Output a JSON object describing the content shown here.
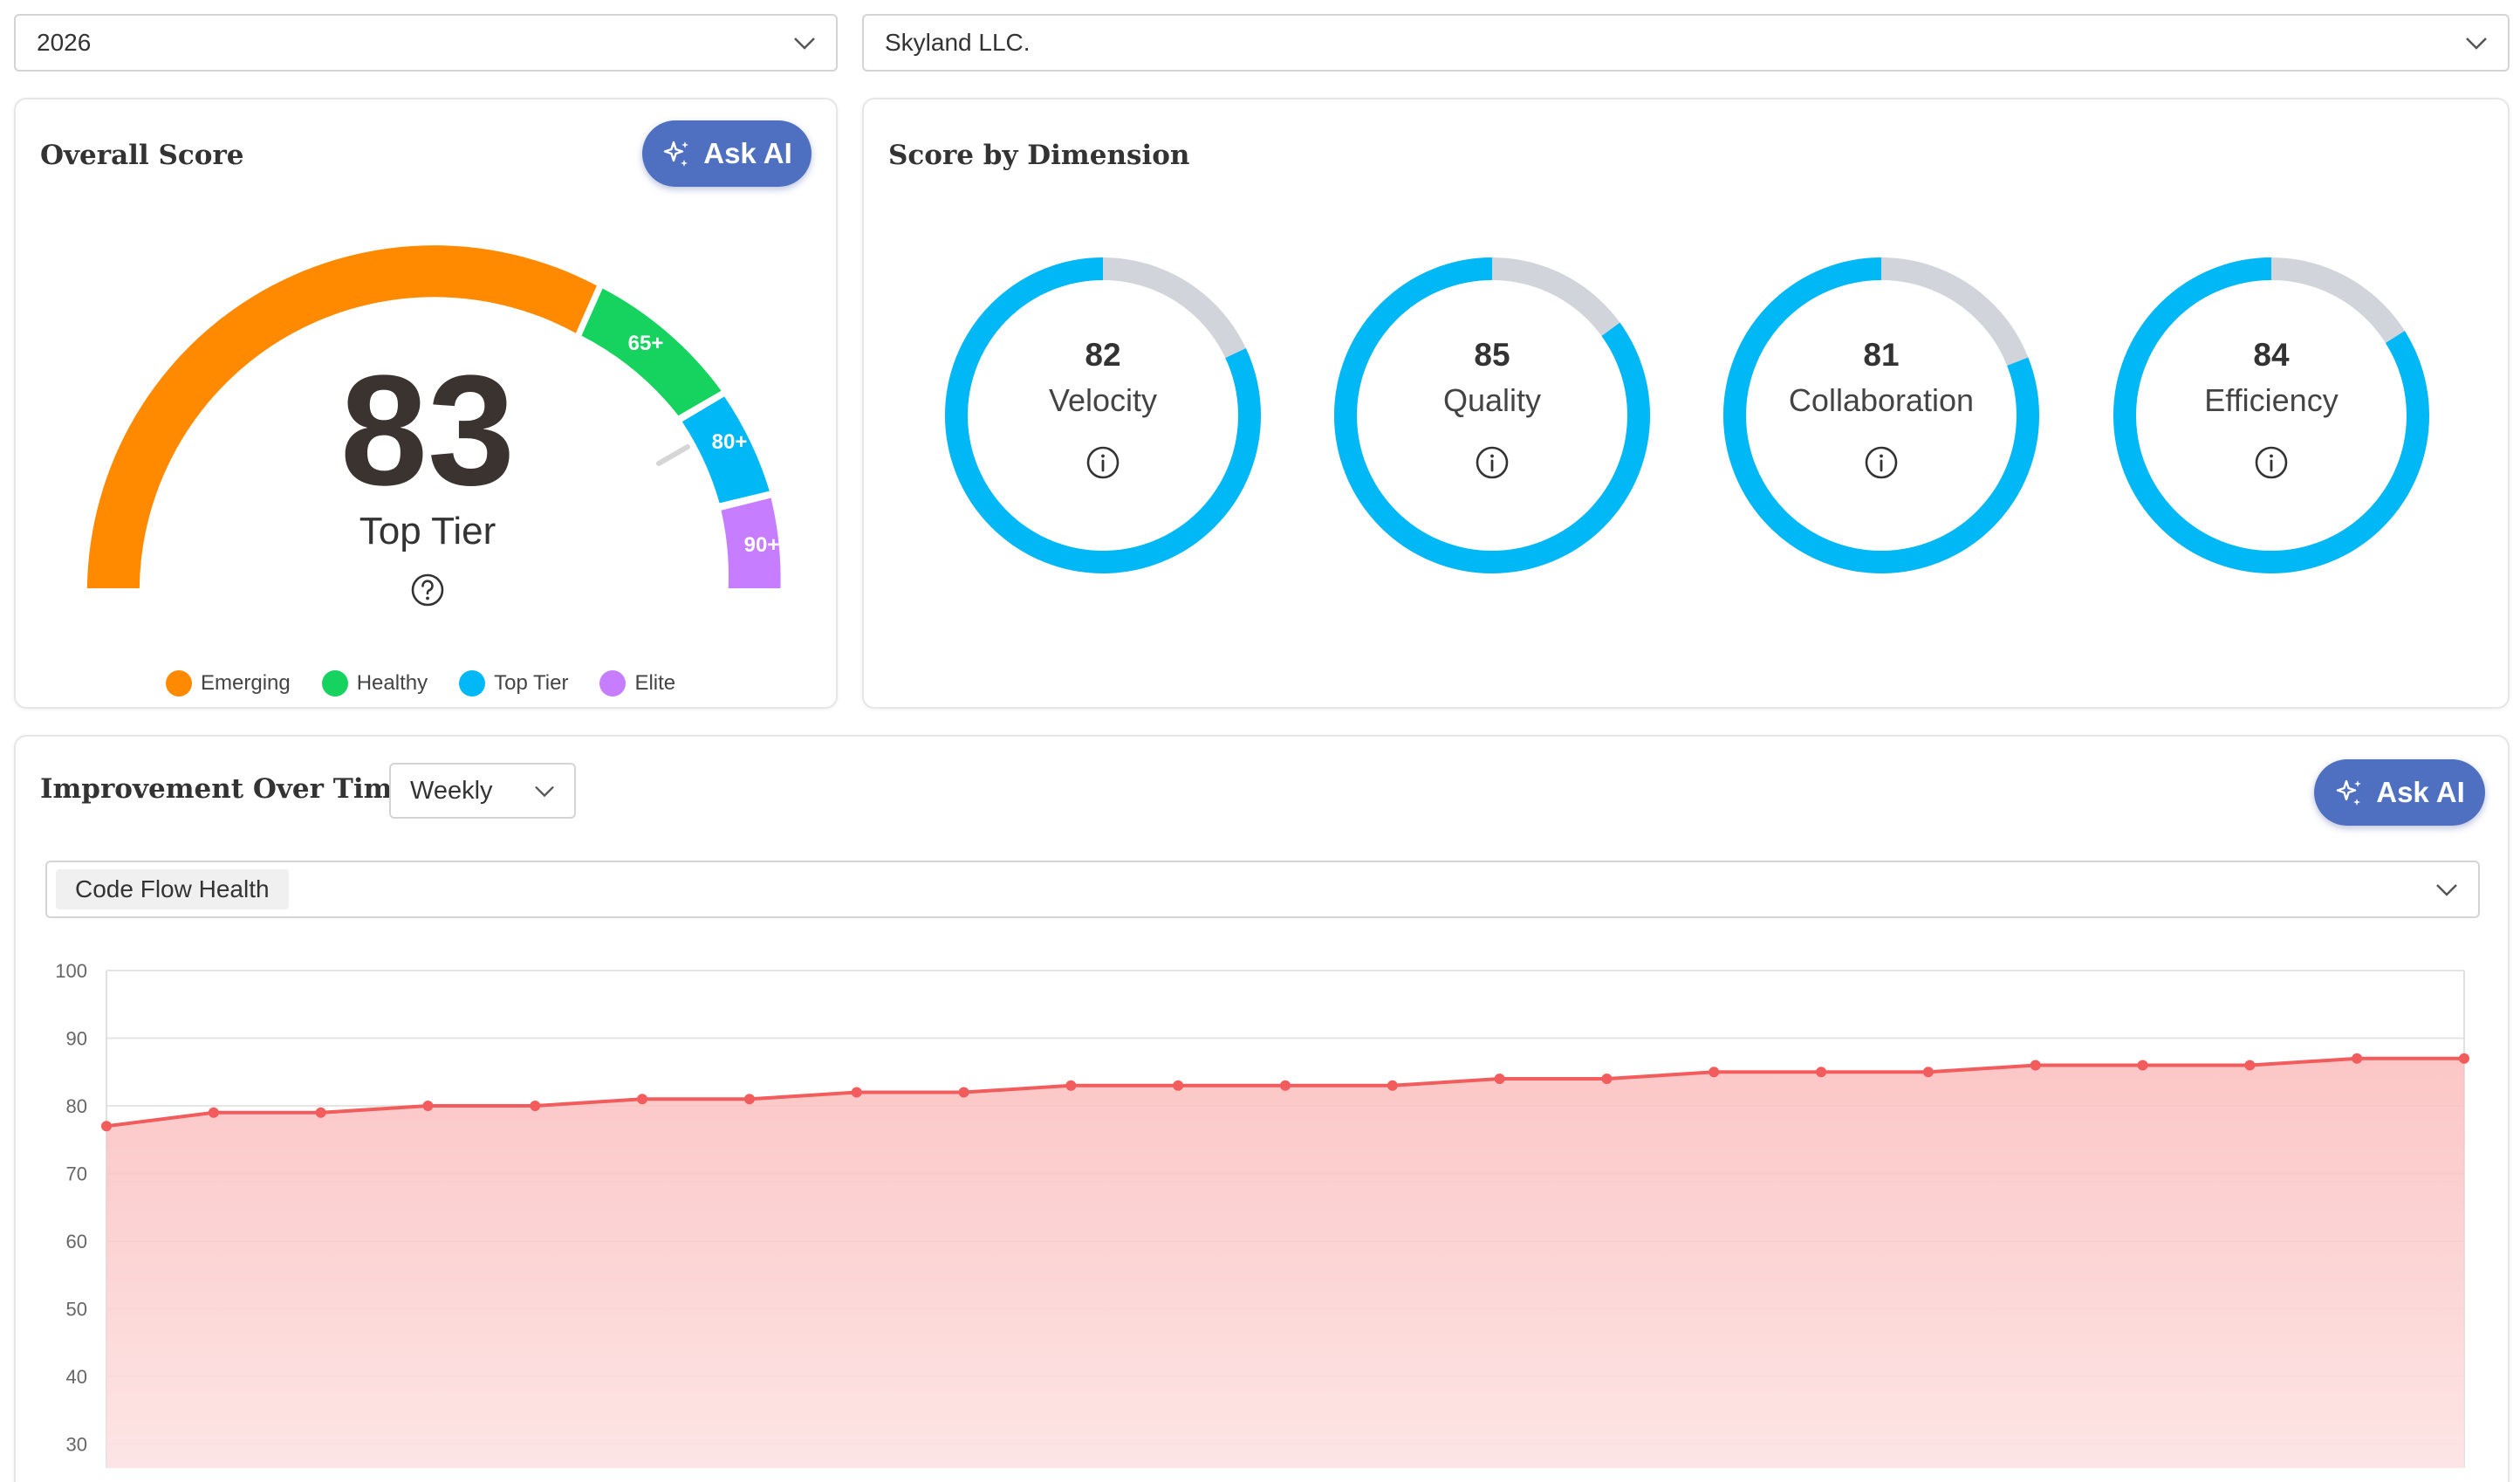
{
  "filters": {
    "year": "2026",
    "company": "Skyland LLC."
  },
  "overall": {
    "title": "Overall Score",
    "ask_ai_label": "Ask AI",
    "score": "83",
    "tier": "Top Tier",
    "segments": [
      {
        "label": "",
        "color": "#ff8a00"
      },
      {
        "label": "65+",
        "color": "#16d35f"
      },
      {
        "label": "80+",
        "color": "#00b8f5"
      },
      {
        "label": "90+",
        "color": "#c77dff"
      }
    ],
    "legend": [
      {
        "label": "Emerging",
        "color": "#ff8a00"
      },
      {
        "label": "Healthy",
        "color": "#16d35f"
      },
      {
        "label": "Top Tier",
        "color": "#00b8f5"
      },
      {
        "label": "Elite",
        "color": "#c77dff"
      }
    ]
  },
  "dimensions": {
    "title": "Score by Dimension",
    "items": [
      {
        "score": "82",
        "name": "Velocity"
      },
      {
        "score": "85",
        "name": "Quality"
      },
      {
        "score": "81",
        "name": "Collaboration"
      },
      {
        "score": "84",
        "name": "Efficiency"
      }
    ],
    "ring_color": "#00b8f5",
    "track_color": "#d1d5db"
  },
  "improvement": {
    "title": "Improvement Over Time",
    "period": "Weekly",
    "ask_ai_label": "Ask AI",
    "metric": "Code Flow Health"
  },
  "chart_data": {
    "type": "area",
    "title": "",
    "xlabel": "",
    "ylabel": "",
    "y_ticks": [
      100,
      90,
      80,
      70,
      60,
      50,
      40,
      30
    ],
    "ylim": [
      25,
      100
    ],
    "grid": true,
    "series": [
      {
        "color": "#f25c5c",
        "values": [
          77,
          79,
          79,
          80,
          80,
          81,
          81,
          82,
          82,
          83,
          83,
          83,
          83,
          84,
          84,
          85,
          85,
          85,
          86,
          86,
          86,
          87,
          87
        ]
      }
    ]
  }
}
